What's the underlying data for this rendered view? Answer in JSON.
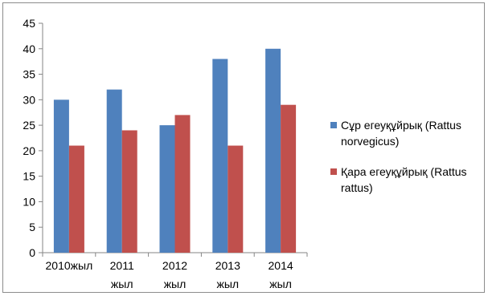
{
  "chart_data": {
    "type": "bar",
    "categories": [
      [
        "2010жыл"
      ],
      [
        "2011",
        "жыл"
      ],
      [
        "2012",
        "жыл"
      ],
      [
        "2013",
        "жыл"
      ],
      [
        "2014",
        "жыл"
      ]
    ],
    "series": [
      {
        "name": "Сұр егеуқұйрық (Rattus norvegicus)",
        "legend_lines": [
          "Сұр егеуқұйрық (Rattus",
          "norvegicus)"
        ],
        "color": "#4f81bd",
        "values": [
          30,
          32,
          25,
          38,
          40
        ]
      },
      {
        "name": "Қара егеуқұйрық (Rattus rattus)",
        "legend_lines": [
          "Қара егеуқұйрық (Rattus",
          "rattus)"
        ],
        "color": "#c0504d",
        "values": [
          21,
          24,
          27,
          21,
          29
        ]
      }
    ],
    "ylim": [
      0,
      45
    ],
    "yticks": [
      0,
      5,
      10,
      15,
      20,
      25,
      30,
      35,
      40,
      45
    ],
    "grid": false,
    "legend": "right"
  }
}
